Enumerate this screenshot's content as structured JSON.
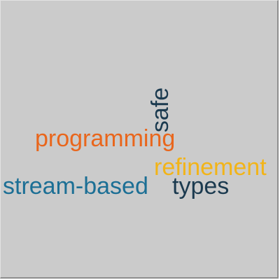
{
  "word_cloud": {
    "words": [
      {
        "id": "safe",
        "text": "safe",
        "color": "#1b3a4f",
        "orientation": "vertical"
      },
      {
        "id": "programming",
        "text": "programming",
        "color": "#e9661c",
        "orientation": "horizontal"
      },
      {
        "id": "refinement",
        "text": "refinement",
        "color": "#f2b418",
        "orientation": "horizontal"
      },
      {
        "id": "stream_based",
        "text": "stream-based",
        "color": "#1c6f95",
        "orientation": "horizontal"
      },
      {
        "id": "types",
        "text": "types",
        "color": "#1b3a4f",
        "orientation": "horizontal"
      }
    ]
  }
}
